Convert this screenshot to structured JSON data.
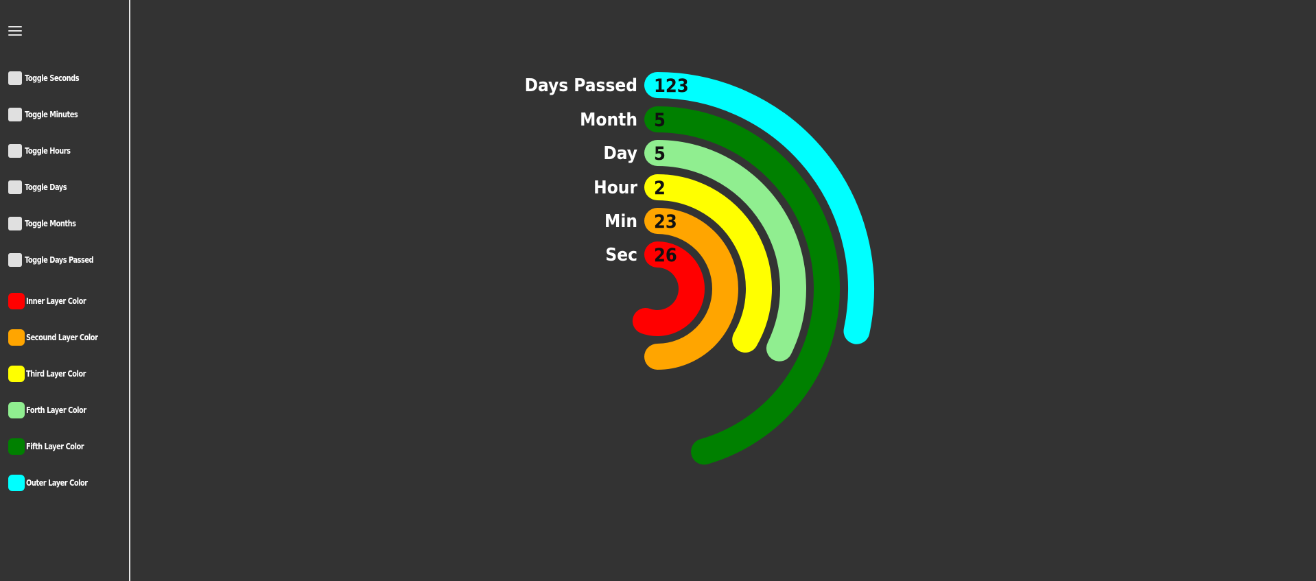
{
  "sidebar": {
    "toggles": [
      {
        "label": "Toggle Seconds"
      },
      {
        "label": "Toggle Minutes"
      },
      {
        "label": "Toggle Hours"
      },
      {
        "label": "Toggle Days"
      },
      {
        "label": "Toggle Months"
      },
      {
        "label": "Toggle Days Passed"
      }
    ],
    "colors": [
      {
        "label": "Inner Layer Color",
        "color": "#ff0000"
      },
      {
        "label": "Secound Layer Color",
        "color": "#ffa500"
      },
      {
        "label": "Third Layer Color",
        "color": "#ffff00"
      },
      {
        "label": "Forth Layer Color",
        "color": "#90ee90"
      },
      {
        "label": "Fifth Layer Color",
        "color": "#008000"
      },
      {
        "label": "Outer Layer Color",
        "color": "#00ffff"
      }
    ]
  },
  "clock": {
    "rings": [
      {
        "label": "Sec",
        "value": "26",
        "color": "#ff0000"
      },
      {
        "label": "Min",
        "value": "23",
        "color": "#ffa500"
      },
      {
        "label": "Hour",
        "value": "2",
        "color": "#ffff00"
      },
      {
        "label": "Day",
        "value": "5",
        "color": "#90ee90"
      },
      {
        "label": "Month",
        "value": "5",
        "color": "#008000"
      },
      {
        "label": "Days Passed",
        "value": "123",
        "color": "#00ffff"
      }
    ]
  }
}
